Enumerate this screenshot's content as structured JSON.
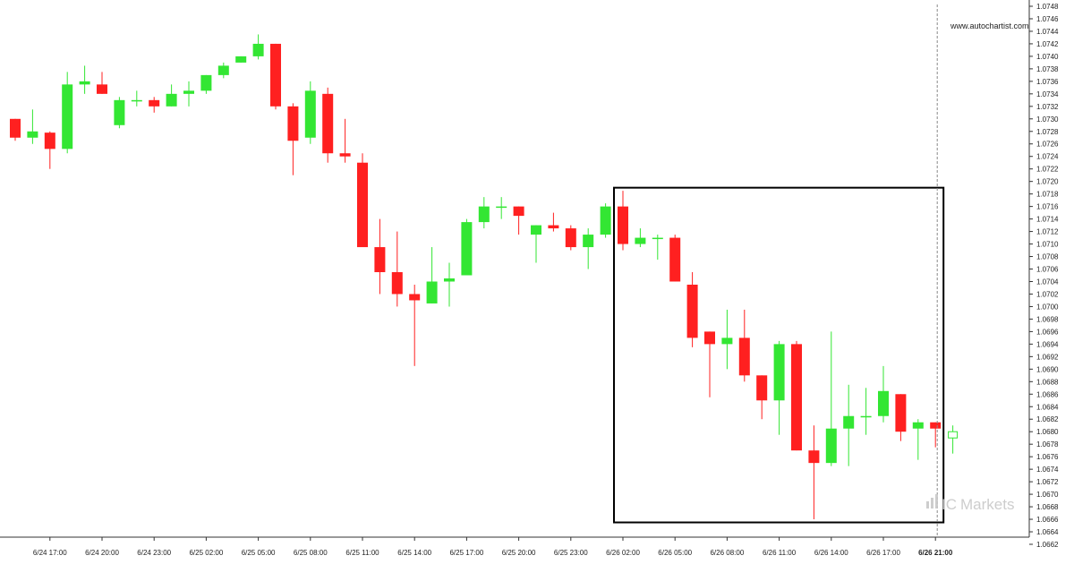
{
  "site_label": "www.autochartist.com",
  "brand_text": "Markets",
  "brand_logo": "IC Markets",
  "colors": {
    "up": "#33e633",
    "down": "#ff2020",
    "box": "#000000",
    "axis": "#333333",
    "last_candle": "#33e633"
  },
  "chart_data": {
    "type": "candlestick",
    "instrument_note": "",
    "ylim": [
      1.0662,
      1.0748
    ],
    "yticks": [
      "1.0748",
      "1.0746",
      "1.0744",
      "1.0742",
      "1.0740",
      "1.0738",
      "1.0736",
      "1.0734",
      "1.0732",
      "1.0730",
      "1.0728",
      "1.0726",
      "1.0724",
      "1.0722",
      "1.0720",
      "1.0718",
      "1.0716",
      "1.0714",
      "1.0712",
      "1.0710",
      "1.0708",
      "1.0706",
      "1.0704",
      "1.0702",
      "1.0700",
      "1.0698",
      "1.0696",
      "1.0694",
      "1.0692",
      "1.0690",
      "1.0688",
      "1.0686",
      "1.0684",
      "1.0682",
      "1.0680",
      "1.0678",
      "1.0676",
      "1.0674",
      "1.0672",
      "1.0670",
      "1.0668",
      "1.0666",
      "1.0664",
      "1.0662"
    ],
    "xticks": [
      {
        "label": "6/24 17:00",
        "index": 2
      },
      {
        "label": "6/24 20:00",
        "index": 5
      },
      {
        "label": "6/24 23:00",
        "index": 8
      },
      {
        "label": "6/25 02:00",
        "index": 11
      },
      {
        "label": "6/25 05:00",
        "index": 14
      },
      {
        "label": "6/25 08:00",
        "index": 17
      },
      {
        "label": "6/25 11:00",
        "index": 20
      },
      {
        "label": "6/25 14:00",
        "index": 23
      },
      {
        "label": "6/25 17:00",
        "index": 26
      },
      {
        "label": "6/25 20:00",
        "index": 29
      },
      {
        "label": "6/25 23:00",
        "index": 32
      },
      {
        "label": "6/26 02:00",
        "index": 35
      },
      {
        "label": "6/26 05:00",
        "index": 38
      },
      {
        "label": "6/26 08:00",
        "index": 41
      },
      {
        "label": "6/26 11:00",
        "index": 44
      },
      {
        "label": "6/26 14:00",
        "index": 47
      },
      {
        "label": "6/26 17:00",
        "index": 50
      },
      {
        "label": "6/26 21:00",
        "index": 53,
        "bold": true
      }
    ],
    "candles": [
      {
        "o": 1.073,
        "h": 1.073,
        "l": 1.07265,
        "c": 1.0727
      },
      {
        "o": 1.0727,
        "h": 1.07315,
        "l": 1.0726,
        "c": 1.0728
      },
      {
        "o": 1.07278,
        "h": 1.0728,
        "l": 1.0722,
        "c": 1.07252
      },
      {
        "o": 1.07252,
        "h": 1.07375,
        "l": 1.07245,
        "c": 1.07355
      },
      {
        "o": 1.07355,
        "h": 1.07385,
        "l": 1.0734,
        "c": 1.0736
      },
      {
        "o": 1.07355,
        "h": 1.07375,
        "l": 1.0734,
        "c": 1.0734
      },
      {
        "o": 1.0729,
        "h": 1.07335,
        "l": 1.07285,
        "c": 1.0733
      },
      {
        "o": 1.0733,
        "h": 1.07345,
        "l": 1.0732,
        "c": 1.0733
      },
      {
        "o": 1.0733,
        "h": 1.07335,
        "l": 1.0731,
        "c": 1.0732
      },
      {
        "o": 1.0732,
        "h": 1.07355,
        "l": 1.0732,
        "c": 1.0734
      },
      {
        "o": 1.0734,
        "h": 1.0736,
        "l": 1.0732,
        "c": 1.07345
      },
      {
        "o": 1.07345,
        "h": 1.0737,
        "l": 1.0734,
        "c": 1.0737
      },
      {
        "o": 1.0737,
        "h": 1.0739,
        "l": 1.07365,
        "c": 1.07385
      },
      {
        "o": 1.0739,
        "h": 1.074,
        "l": 1.0739,
        "c": 1.074
      },
      {
        "o": 1.074,
        "h": 1.07435,
        "l": 1.07395,
        "c": 1.0742
      },
      {
        "o": 1.0742,
        "h": 1.0742,
        "l": 1.07315,
        "c": 1.0732
      },
      {
        "o": 1.0732,
        "h": 1.07325,
        "l": 1.0721,
        "c": 1.07265
      },
      {
        "o": 1.0727,
        "h": 1.0736,
        "l": 1.0726,
        "c": 1.07345
      },
      {
        "o": 1.0734,
        "h": 1.0735,
        "l": 1.0723,
        "c": 1.07245
      },
      {
        "o": 1.07245,
        "h": 1.073,
        "l": 1.0723,
        "c": 1.0724
      },
      {
        "o": 1.0723,
        "h": 1.07245,
        "l": 1.07095,
        "c": 1.07095
      },
      {
        "o": 1.07095,
        "h": 1.0714,
        "l": 1.0702,
        "c": 1.07055
      },
      {
        "o": 1.07055,
        "h": 1.0712,
        "l": 1.07,
        "c": 1.0702
      },
      {
        "o": 1.0702,
        "h": 1.07035,
        "l": 1.06905,
        "c": 1.0701
      },
      {
        "o": 1.07005,
        "h": 1.07095,
        "l": 1.07005,
        "c": 1.0704
      },
      {
        "o": 1.0704,
        "h": 1.0707,
        "l": 1.07,
        "c": 1.07045
      },
      {
        "o": 1.0705,
        "h": 1.0714,
        "l": 1.0705,
        "c": 1.07135
      },
      {
        "o": 1.07135,
        "h": 1.07175,
        "l": 1.07125,
        "c": 1.0716
      },
      {
        "o": 1.0716,
        "h": 1.07175,
        "l": 1.0714,
        "c": 1.0716
      },
      {
        "o": 1.0716,
        "h": 1.0716,
        "l": 1.07115,
        "c": 1.07145
      },
      {
        "o": 1.07115,
        "h": 1.0713,
        "l": 1.0707,
        "c": 1.0713
      },
      {
        "o": 1.0713,
        "h": 1.0715,
        "l": 1.0712,
        "c": 1.07125
      },
      {
        "o": 1.07125,
        "h": 1.0713,
        "l": 1.0709,
        "c": 1.07095
      },
      {
        "o": 1.07095,
        "h": 1.07125,
        "l": 1.0706,
        "c": 1.07115
      },
      {
        "o": 1.07115,
        "h": 1.07165,
        "l": 1.0711,
        "c": 1.0716
      },
      {
        "o": 1.0716,
        "h": 1.07185,
        "l": 1.0709,
        "c": 1.071
      },
      {
        "o": 1.071,
        "h": 1.07125,
        "l": 1.07095,
        "c": 1.0711
      },
      {
        "o": 1.0711,
        "h": 1.07115,
        "l": 1.07075,
        "c": 1.0711
      },
      {
        "o": 1.0711,
        "h": 1.07115,
        "l": 1.0704,
        "c": 1.0704
      },
      {
        "o": 1.07035,
        "h": 1.07055,
        "l": 1.06935,
        "c": 1.0695
      },
      {
        "o": 1.0696,
        "h": 1.0696,
        "l": 1.06855,
        "c": 1.0694
      },
      {
        "o": 1.0694,
        "h": 1.06995,
        "l": 1.069,
        "c": 1.0695
      },
      {
        "o": 1.0695,
        "h": 1.06995,
        "l": 1.0688,
        "c": 1.0689
      },
      {
        "o": 1.0689,
        "h": 1.0689,
        "l": 1.0682,
        "c": 1.0685
      },
      {
        "o": 1.0685,
        "h": 1.06945,
        "l": 1.06795,
        "c": 1.0694
      },
      {
        "o": 1.0694,
        "h": 1.06945,
        "l": 1.0677,
        "c": 1.0677
      },
      {
        "o": 1.0677,
        "h": 1.0681,
        "l": 1.0666,
        "c": 1.0675
      },
      {
        "o": 1.0675,
        "h": 1.0696,
        "l": 1.06745,
        "c": 1.06805
      },
      {
        "o": 1.06805,
        "h": 1.06875,
        "l": 1.06745,
        "c": 1.06825
      },
      {
        "o": 1.06825,
        "h": 1.0687,
        "l": 1.06795,
        "c": 1.06825
      },
      {
        "o": 1.06825,
        "h": 1.06905,
        "l": 1.06815,
        "c": 1.06865
      },
      {
        "o": 1.0686,
        "h": 1.0686,
        "l": 1.06785,
        "c": 1.068
      },
      {
        "o": 1.06805,
        "h": 1.0682,
        "l": 1.06755,
        "c": 1.06815
      },
      {
        "o": 1.06815,
        "h": 1.06815,
        "l": 1.06775,
        "c": 1.06805
      },
      {
        "o": 1.0679,
        "h": 1.0681,
        "l": 1.06765,
        "c": 1.068,
        "hollow": true
      }
    ],
    "highlight_box": {
      "from_index": 35,
      "to_index": 53,
      "high": 1.0719,
      "low": 1.06655
    },
    "current_time_index": 53
  }
}
